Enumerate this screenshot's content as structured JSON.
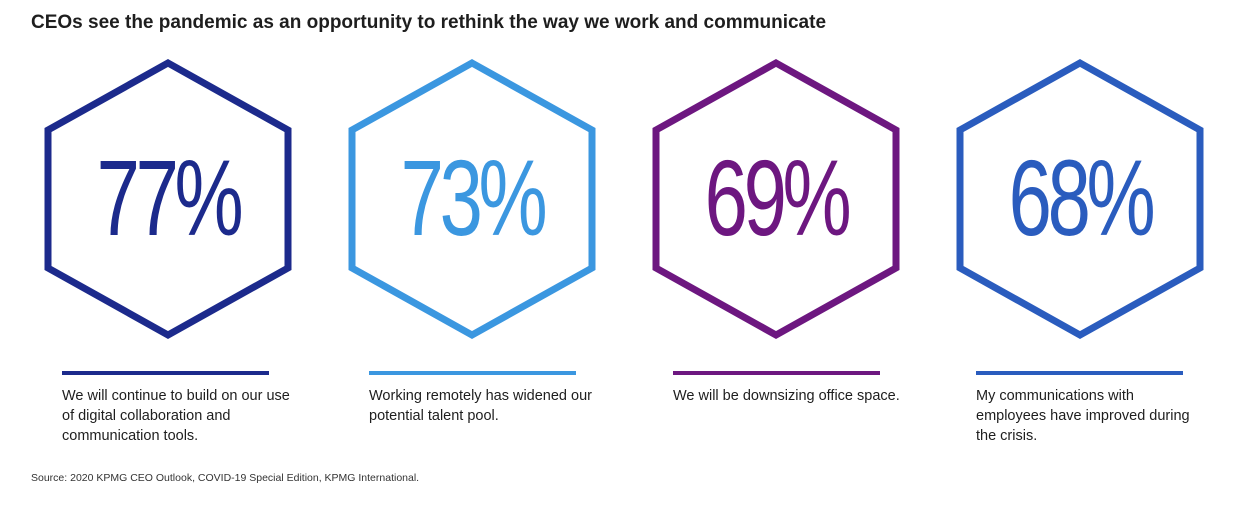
{
  "title": "CEOs see the pandemic as an opportunity to rethink the way we work and communicate",
  "source": "Source: 2020 KPMG CEO Outlook, COVID-19 Special Edition, KPMG International.",
  "chart_data": {
    "type": "table",
    "title": "CEOs see the pandemic as an opportunity to rethink the way we work and communicate",
    "items": [
      {
        "value": 77,
        "label": "77%",
        "caption": "We will continue to build on our use of digital collaboration and communication tools.",
        "color": "#1c2a8c"
      },
      {
        "value": 73,
        "label": "73%",
        "caption": "Working remotely has widened our potential talent pool.",
        "color": "#3b97e0"
      },
      {
        "value": 69,
        "label": "69%",
        "caption": "We will be downsizing office space.",
        "color": "#6d1780"
      },
      {
        "value": 68,
        "label": "68%",
        "caption": "My communications with employees have improved during the crisis.",
        "color": "#2a5cbe"
      }
    ]
  }
}
